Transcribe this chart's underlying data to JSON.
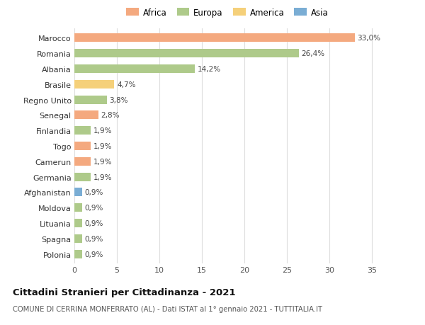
{
  "countries": [
    "Marocco",
    "Romania",
    "Albania",
    "Brasile",
    "Regno Unito",
    "Senegal",
    "Finlandia",
    "Togo",
    "Camerun",
    "Germania",
    "Afghanistan",
    "Moldova",
    "Lituania",
    "Spagna",
    "Polonia"
  ],
  "values": [
    33.0,
    26.4,
    14.2,
    4.7,
    3.8,
    2.8,
    1.9,
    1.9,
    1.9,
    1.9,
    0.9,
    0.9,
    0.9,
    0.9,
    0.9
  ],
  "labels": [
    "33,0%",
    "26,4%",
    "14,2%",
    "4,7%",
    "3,8%",
    "2,8%",
    "1,9%",
    "1,9%",
    "1,9%",
    "1,9%",
    "0,9%",
    "0,9%",
    "0,9%",
    "0,9%",
    "0,9%"
  ],
  "continents": [
    "Africa",
    "Europa",
    "Europa",
    "America",
    "Europa",
    "Africa",
    "Europa",
    "Africa",
    "Africa",
    "Europa",
    "Asia",
    "Europa",
    "Europa",
    "Europa",
    "Europa"
  ],
  "colors": {
    "Africa": "#F4A97F",
    "Europa": "#AECA8A",
    "America": "#F5D07A",
    "Asia": "#7AADD4"
  },
  "legend_order": [
    "Africa",
    "Europa",
    "America",
    "Asia"
  ],
  "title_bold": "Cittadini Stranieri per Cittadinanza - 2021",
  "subtitle": "COMUNE DI CERRINA MONFERRATO (AL) - Dati ISTAT al 1° gennaio 2021 - TUTTITALIA.IT",
  "xlim": [
    0,
    36
  ],
  "xticks": [
    0,
    5,
    10,
    15,
    20,
    25,
    30,
    35
  ],
  "background_color": "#ffffff",
  "grid_color": "#dddddd",
  "bar_height": 0.55
}
